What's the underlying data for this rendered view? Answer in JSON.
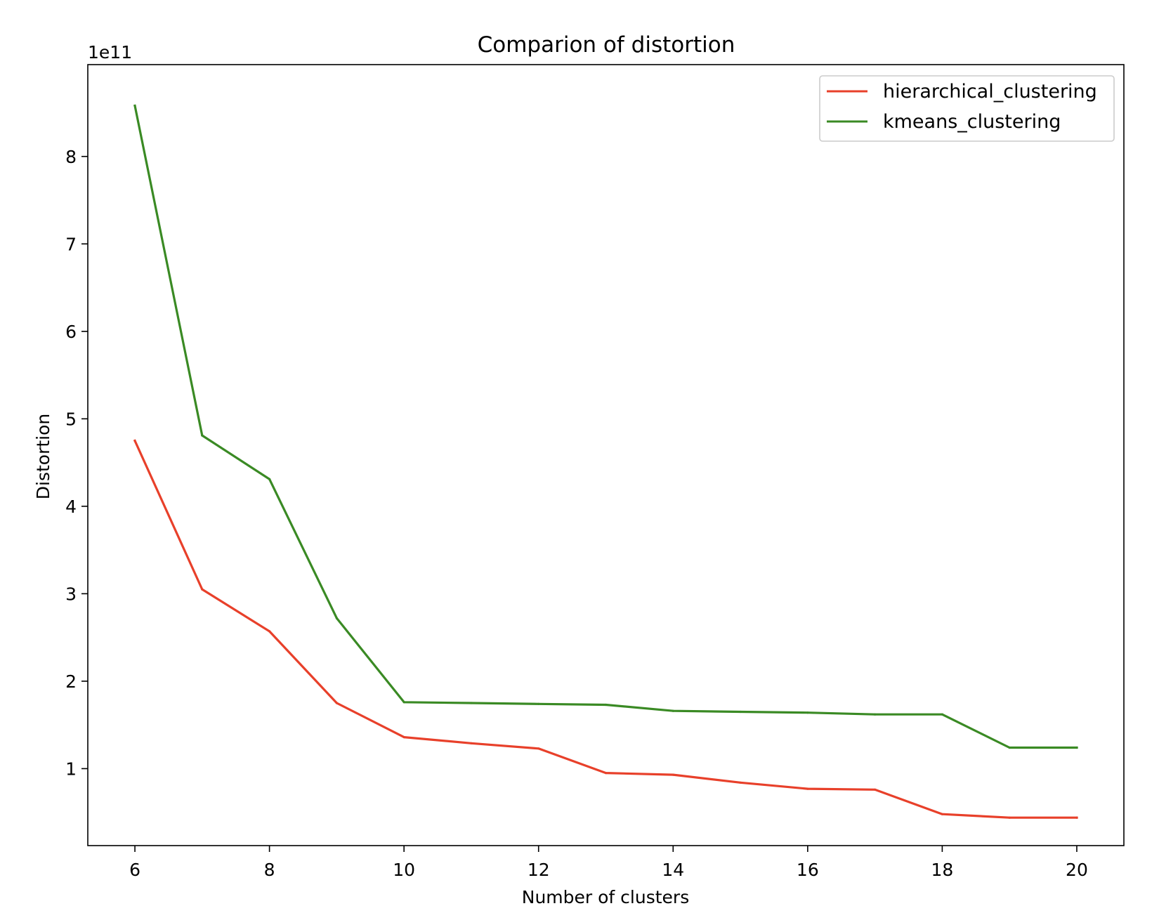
{
  "chart_data": {
    "type": "line",
    "title": "Comparion of distortion",
    "xlabel": "Number of clusters",
    "ylabel": "Distortion",
    "y_offset_label": "1e11",
    "y_scale": 100000000000.0,
    "xlim": [
      5.3,
      20.7
    ],
    "ylim": [
      0.12,
      9.05
    ],
    "x_ticks": [
      6,
      8,
      10,
      12,
      14,
      16,
      18,
      20
    ],
    "y_ticks": [
      1,
      2,
      3,
      4,
      5,
      6,
      7,
      8
    ],
    "grid": false,
    "legend_position": "top-right",
    "x": [
      6,
      7,
      8,
      9,
      10,
      11,
      12,
      13,
      14,
      15,
      16,
      17,
      18,
      19,
      20
    ],
    "series": [
      {
        "name": "hierarchical_clustering",
        "color": "#e8402a",
        "values": [
          4.75,
          3.05,
          2.57,
          1.75,
          1.36,
          1.29,
          1.23,
          0.95,
          0.93,
          0.84,
          0.77,
          0.76,
          0.48,
          0.44,
          0.44
        ]
      },
      {
        "name": "kmeans_clustering",
        "color": "#3a8a24",
        "values": [
          8.58,
          4.81,
          4.31,
          2.72,
          1.76,
          1.75,
          1.74,
          1.73,
          1.66,
          1.65,
          1.64,
          1.62,
          1.62,
          1.24,
          1.24
        ]
      }
    ]
  }
}
